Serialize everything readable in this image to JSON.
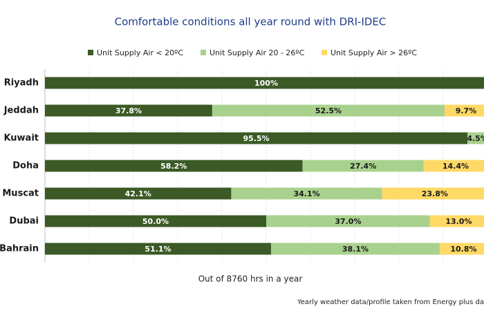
{
  "chart_data": {
    "type": "stacked-bar-horizontal",
    "title": "Comfortable conditions all year round with DRI-IDEC",
    "xlabel": "Out of 8760 hrs in a year",
    "note": "Yearly weather data/profile taken from Energy plus data",
    "categories": [
      "Riyadh",
      "Jeddah",
      "Kuwait",
      "Doha",
      "Muscat",
      "Dubai",
      "Bahrain"
    ],
    "xlim": [
      0,
      100
    ],
    "series": [
      {
        "name": "Unit Supply Air < 20ºC",
        "color": "#3b5a26",
        "values": [
          100,
          37.8,
          95.5,
          58.2,
          42.1,
          50.0,
          51.1
        ],
        "value_labels": [
          "100%",
          "37.8%",
          "95.5%",
          "58.2%",
          "42.1%",
          "50.0%",
          "51.1%"
        ]
      },
      {
        "name": "Unit Supply Air 20 - 26ºC",
        "color": "#a9d18e",
        "values": [
          0,
          52.5,
          4.5,
          27.4,
          34.1,
          37.0,
          38.1
        ],
        "value_labels": [
          null,
          "52.5%",
          "4.5%",
          "27.4%",
          "34.1%",
          "37.0%",
          "38.1%"
        ]
      },
      {
        "name": "Unit Supply Air > 26ºC",
        "color": "#ffd966",
        "values": [
          0,
          9.7,
          0,
          14.4,
          23.8,
          13.0,
          10.8
        ],
        "value_labels": [
          null,
          "9.7%",
          null,
          "14.4%",
          "23.8%",
          "13.0%",
          "10.8%"
        ]
      }
    ]
  }
}
